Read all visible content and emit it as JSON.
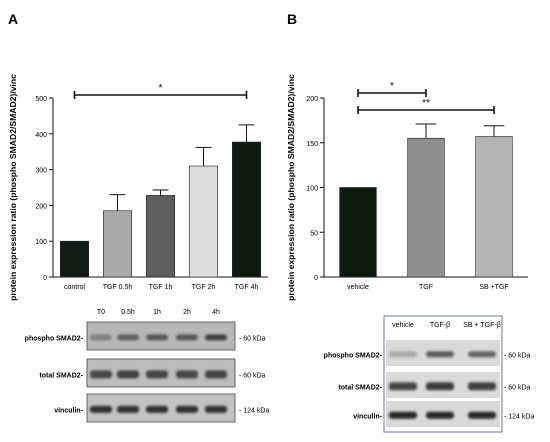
{
  "panels": {
    "A": {
      "letter": "A"
    },
    "B": {
      "letter": "B"
    }
  },
  "chart_data": [
    {
      "type": "bar",
      "panel": "A",
      "categories": [
        "control",
        "TGF 0.5h",
        "TGF 1h",
        "TGF 2h",
        "TGF 4h"
      ],
      "values": [
        100,
        185,
        228,
        310,
        377
      ],
      "errors": [
        0,
        45,
        15,
        52,
        48
      ],
      "colors": [
        "#111a14",
        "#a9a9a9",
        "#5e5e5e",
        "#dcdcdc",
        "#0c1a10"
      ],
      "ylabel": "protein expression ratio (phospho SMAD2/SMAD2)/vinc",
      "ylim": [
        0,
        500
      ],
      "yticks": [
        0,
        100,
        200,
        300,
        400,
        500
      ],
      "significance": [
        {
          "from": "control",
          "to": "TGF 4h",
          "label": "*"
        }
      ]
    },
    {
      "type": "bar",
      "panel": "B",
      "categories": [
        "vehicle",
        "TGF",
        "SB +TGF"
      ],
      "values": [
        100,
        155,
        157
      ],
      "errors": [
        0,
        16,
        12
      ],
      "colors": [
        "#0c1a10",
        "#8f8f8f",
        "#b4b4b4"
      ],
      "ylabel": "protein expression ratio (phospho SMAD2/SMAD2)/vinc",
      "ylim": [
        0,
        200
      ],
      "yticks": [
        0,
        50,
        100,
        150,
        200
      ],
      "significance": [
        {
          "from": "vehicle",
          "to": "TGF",
          "label": "*"
        },
        {
          "from": "vehicle",
          "to": "SB +TGF",
          "label": "**"
        }
      ]
    }
  ],
  "blots": {
    "A": {
      "lanes": [
        "T0",
        "0.5h",
        "1h",
        "2h",
        "4h"
      ],
      "rows": [
        {
          "label": "phospho SMAD2-",
          "size": "- 60 kDa"
        },
        {
          "label": "total SMAD2-",
          "size": "- 60 kDa"
        },
        {
          "label": "vinculin-",
          "size": "- 124 kDa"
        }
      ]
    },
    "B": {
      "lanes": [
        "vehicle",
        "TGF-β",
        "SB + TGF-β"
      ],
      "rows": [
        {
          "label": "phospho SMAD2-",
          "size": "- 60 kDa"
        },
        {
          "label": "total SMAD2-",
          "size": "- 60 kDa"
        },
        {
          "label": "vinculin-",
          "size": "- 124 kDa"
        }
      ]
    }
  }
}
